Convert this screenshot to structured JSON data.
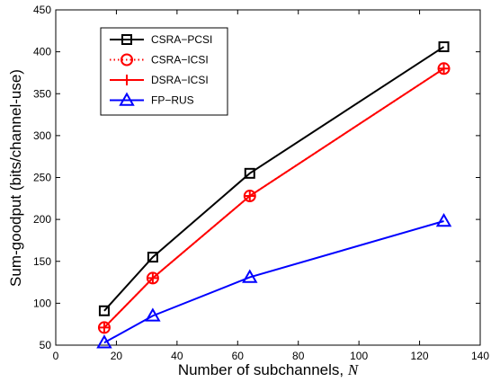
{
  "chart_data": {
    "type": "line",
    "xlabel": "Number of subchannels, ",
    "xlabel_var": "N",
    "ylabel": "Sum-goodput (bits/channel-use)",
    "xlim": [
      0,
      140
    ],
    "ylim": [
      50,
      450
    ],
    "xticks": [
      "0",
      "20",
      "40",
      "60",
      "80",
      "100",
      "120",
      "140"
    ],
    "yticks": [
      "50",
      "100",
      "150",
      "200",
      "250",
      "300",
      "350",
      "400",
      "450"
    ],
    "grid": false,
    "legend_position": "top-left",
    "series": [
      {
        "name": "CSRA−PCSI",
        "color": "#000000",
        "marker": "square",
        "line": "solid",
        "x": [
          16,
          32,
          64,
          128
        ],
        "y": [
          91,
          155,
          255,
          406
        ]
      },
      {
        "name": "CSRA−ICSI",
        "color": "#ff0000",
        "marker": "circle",
        "line": "dotted",
        "x": [
          16,
          32,
          64,
          128
        ],
        "y": [
          71,
          130,
          228,
          380
        ]
      },
      {
        "name": "DSRA−ICSI",
        "color": "#ff0000",
        "marker": "plus",
        "line": "solid",
        "x": [
          16,
          32,
          64,
          128
        ],
        "y": [
          71,
          130,
          228,
          380
        ]
      },
      {
        "name": "FP−RUS",
        "color": "#0000ff",
        "marker": "triangle",
        "line": "solid",
        "x": [
          16,
          32,
          64,
          128
        ],
        "y": [
          53,
          85,
          131,
          198
        ]
      }
    ]
  }
}
